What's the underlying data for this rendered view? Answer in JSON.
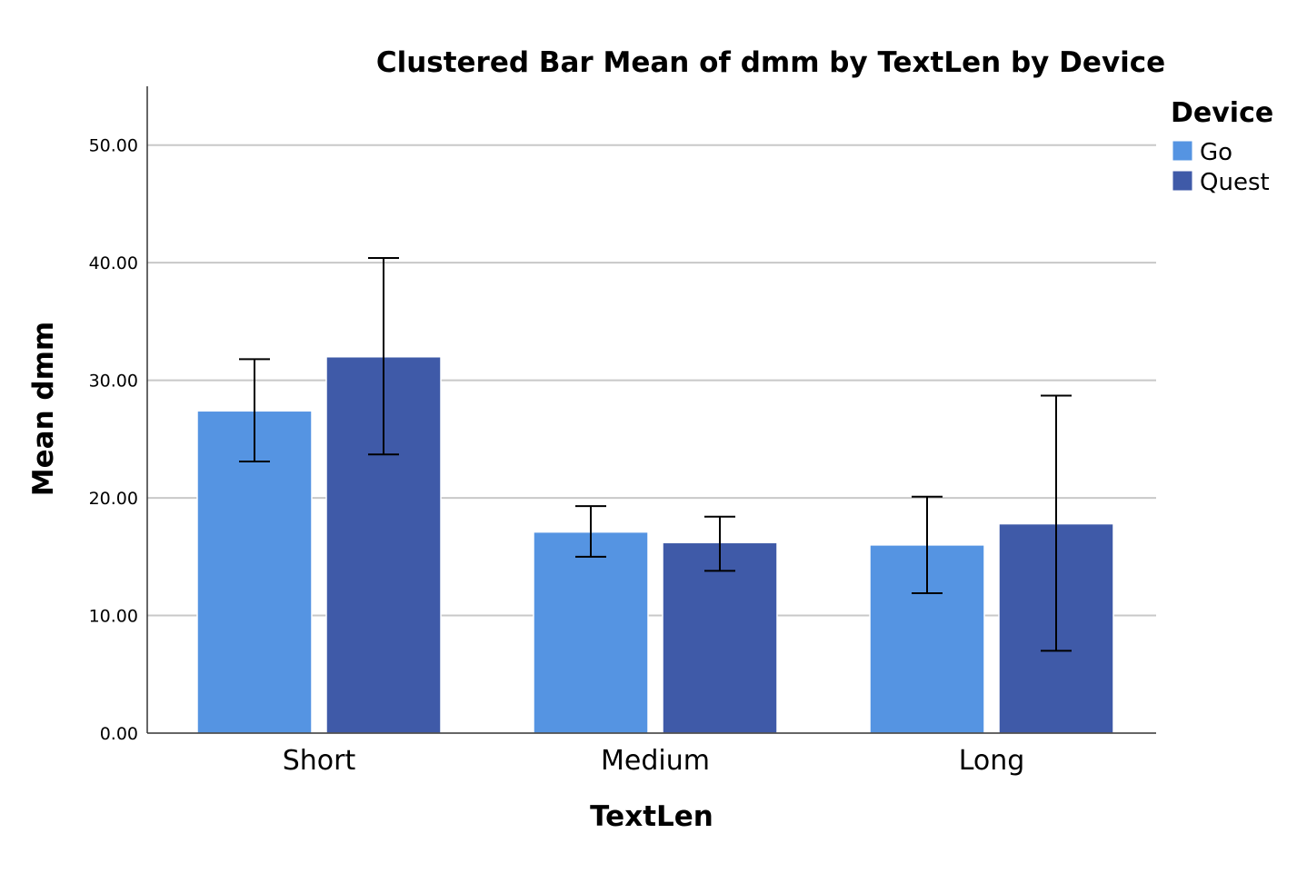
{
  "chart_data": {
    "type": "bar",
    "title": "Clustered Bar Mean of dmm by TextLen by Device",
    "xlabel": "TextLen",
    "ylabel": "Mean dmm",
    "ylim": [
      0,
      55
    ],
    "yticks": [
      0,
      10,
      20,
      30,
      40,
      50
    ],
    "ytick_labels": [
      "0.00",
      "10.00",
      "20.00",
      "30.00",
      "40.00",
      "50.00"
    ],
    "grid": true,
    "categories": [
      "Short",
      "Medium",
      "Long"
    ],
    "legend": {
      "title": "Device",
      "placement": "top-right"
    },
    "series": [
      {
        "name": "Go",
        "color": "#5594e2",
        "values": [
          27.4,
          17.1,
          16.0
        ],
        "err_low": [
          23.1,
          15.0,
          11.9
        ],
        "err_high": [
          31.8,
          19.3,
          20.1
        ]
      },
      {
        "name": "Quest",
        "color": "#3f5aa8",
        "values": [
          32.0,
          16.2,
          17.8
        ],
        "err_low": [
          23.7,
          13.8,
          7.0
        ],
        "err_high": [
          40.4,
          18.4,
          28.7
        ]
      }
    ]
  }
}
